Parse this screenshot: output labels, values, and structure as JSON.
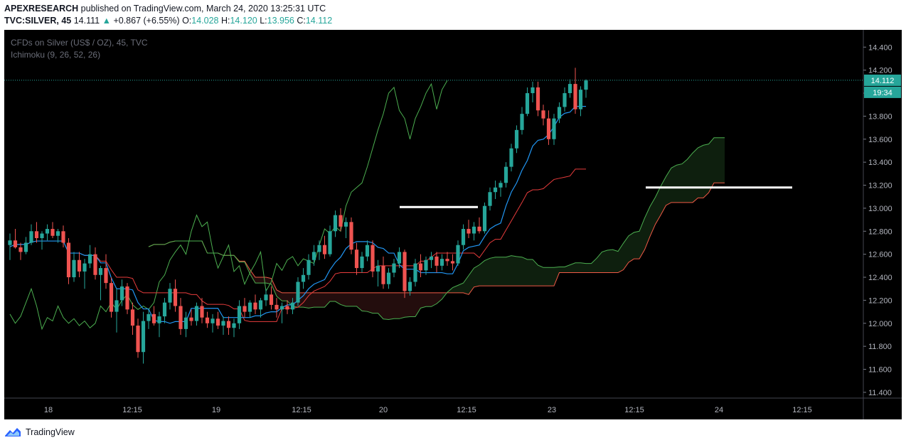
{
  "header": {
    "publisher": "APEXRESEARCH",
    "published_text": "published on TradingView.com, March 24, 2020 13:25:31 UTC",
    "symbol": "TVC:SILVER, 45",
    "price": "14.111",
    "change_arrow": "▲",
    "change": "+0.867 (+6.55%)",
    "o_label": "O:",
    "o_value": "14.028",
    "h_label": "H:",
    "h_value": "14.120",
    "l_label": "L:",
    "l_value": "13.956",
    "c_label": "C:",
    "c_value": "14.112"
  },
  "legend": {
    "instrument": "CFDs on Silver (US$ / OZ), 45, TVC",
    "indicator": "Ichimoku (9, 26, 52, 26)"
  },
  "price_tag": "14.112",
  "countdown": "19:34",
  "footer": {
    "brand": "TradingView",
    "logo_icon": "tradingview-logo-icon"
  },
  "colors": {
    "background": "#000000",
    "up": "#26a69a",
    "down": "#ef5350",
    "conversion_line": "#2196f3",
    "base_line": "#e83c3c",
    "lagging_span": "#4caf50",
    "cloud_bull": "#0e1f0e",
    "cloud_bear": "#230d0d",
    "lead_b": "#f05a46",
    "lead_a": "#4caf50"
  },
  "chart_data": {
    "type": "candlestick",
    "title": "CFDs on Silver (US$ / OZ), 45, TVC",
    "ylim": [
      11.35,
      14.55
    ],
    "yticks": [
      "14.400",
      "14.200",
      "14.000",
      "13.800",
      "13.600",
      "13.400",
      "13.200",
      "13.000",
      "12.800",
      "12.600",
      "12.400",
      "12.200",
      "12.000",
      "11.800",
      "11.600",
      "11.400"
    ],
    "xticks": [
      "18",
      "12:15",
      "19",
      "12:15",
      "20",
      "12:15",
      "23",
      "12:15",
      "24",
      "12:15"
    ],
    "last_price": 14.112,
    "candles": [
      [
        12.68,
        12.78,
        12.55,
        12.72
      ],
      [
        12.72,
        12.82,
        12.65,
        12.66
      ],
      [
        12.66,
        12.7,
        12.55,
        12.62
      ],
      [
        12.62,
        12.75,
        12.6,
        12.7
      ],
      [
        12.7,
        12.86,
        12.68,
        12.8
      ],
      [
        12.8,
        12.88,
        12.7,
        12.74
      ],
      [
        12.74,
        12.8,
        12.64,
        12.78
      ],
      [
        12.78,
        12.86,
        12.72,
        12.82
      ],
      [
        12.82,
        12.88,
        12.74,
        12.76
      ],
      [
        12.76,
        12.82,
        12.7,
        12.8
      ],
      [
        12.8,
        12.85,
        12.66,
        12.7
      ],
      [
        12.7,
        12.74,
        12.34,
        12.4
      ],
      [
        12.4,
        12.62,
        12.36,
        12.55
      ],
      [
        12.55,
        12.62,
        12.4,
        12.45
      ],
      [
        12.45,
        12.56,
        12.3,
        12.52
      ],
      [
        12.52,
        12.68,
        12.48,
        12.6
      ],
      [
        12.6,
        12.66,
        12.38,
        12.42
      ],
      [
        12.42,
        12.5,
        12.2,
        12.48
      ],
      [
        12.48,
        12.6,
        12.3,
        12.35
      ],
      [
        12.35,
        12.4,
        12.05,
        12.1
      ],
      [
        12.1,
        12.3,
        11.92,
        12.2
      ],
      [
        12.2,
        12.38,
        12.15,
        12.32
      ],
      [
        12.32,
        12.35,
        12.08,
        12.12
      ],
      [
        12.12,
        12.18,
        11.9,
        11.98
      ],
      [
        11.98,
        12.04,
        11.7,
        11.75
      ],
      [
        11.75,
        12.1,
        11.65,
        12.02
      ],
      [
        12.02,
        12.12,
        11.95,
        12.08
      ],
      [
        12.08,
        12.15,
        11.98,
        12.0
      ],
      [
        12.0,
        12.1,
        11.88,
        12.06
      ],
      [
        12.06,
        12.22,
        12.0,
        12.18
      ],
      [
        12.18,
        12.35,
        12.12,
        12.3
      ],
      [
        12.3,
        12.38,
        12.1,
        12.15
      ],
      [
        12.15,
        12.22,
        11.9,
        11.95
      ],
      [
        11.95,
        12.1,
        11.88,
        12.05
      ],
      [
        12.05,
        12.12,
        11.98,
        12.02
      ],
      [
        12.02,
        12.18,
        11.98,
        12.15
      ],
      [
        12.15,
        12.22,
        12.0,
        12.05
      ],
      [
        12.05,
        12.1,
        11.96,
        12.0
      ],
      [
        12.0,
        12.08,
        11.92,
        12.04
      ],
      [
        12.04,
        12.1,
        11.95,
        11.98
      ],
      [
        11.98,
        12.06,
        11.9,
        12.02
      ],
      [
        12.02,
        12.06,
        11.9,
        11.96
      ],
      [
        11.96,
        12.04,
        11.88,
        12.0
      ],
      [
        12.0,
        12.2,
        11.95,
        12.15
      ],
      [
        12.15,
        12.22,
        12.05,
        12.1
      ],
      [
        12.1,
        12.2,
        12.05,
        12.18
      ],
      [
        12.18,
        12.25,
        12.08,
        12.12
      ],
      [
        12.12,
        12.22,
        12.05,
        12.2
      ],
      [
        12.2,
        12.3,
        12.15,
        12.25
      ],
      [
        12.25,
        12.32,
        12.12,
        12.16
      ],
      [
        12.16,
        12.22,
        12.05,
        12.12
      ],
      [
        12.12,
        12.18,
        12.0,
        12.15
      ],
      [
        12.15,
        12.2,
        12.08,
        12.12
      ],
      [
        12.12,
        12.22,
        12.08,
        12.18
      ],
      [
        12.18,
        12.4,
        12.15,
        12.36
      ],
      [
        12.36,
        12.48,
        12.3,
        12.42
      ],
      [
        12.42,
        12.6,
        12.38,
        12.55
      ],
      [
        12.55,
        12.68,
        12.5,
        12.62
      ],
      [
        12.62,
        12.72,
        12.55,
        12.68
      ],
      [
        12.68,
        12.76,
        12.56,
        12.6
      ],
      [
        12.6,
        12.85,
        12.58,
        12.8
      ],
      [
        12.8,
        12.98,
        12.75,
        12.94
      ],
      [
        12.94,
        13.0,
        12.8,
        12.84
      ],
      [
        12.84,
        12.92,
        12.74,
        12.88
      ],
      [
        12.88,
        12.92,
        12.6,
        12.64
      ],
      [
        12.64,
        12.7,
        12.42,
        12.48
      ],
      [
        12.48,
        12.62,
        12.44,
        12.58
      ],
      [
        12.58,
        12.72,
        12.54,
        12.68
      ],
      [
        12.68,
        12.72,
        12.4,
        12.45
      ],
      [
        12.45,
        12.55,
        12.32,
        12.5
      ],
      [
        12.5,
        12.58,
        12.3,
        12.34
      ],
      [
        12.34,
        12.48,
        12.3,
        12.44
      ],
      [
        12.44,
        12.56,
        12.4,
        12.52
      ],
      [
        12.52,
        12.66,
        12.48,
        12.62
      ],
      [
        12.62,
        12.64,
        12.22,
        12.28
      ],
      [
        12.28,
        12.4,
        12.24,
        12.36
      ],
      [
        12.36,
        12.56,
        12.32,
        12.52
      ],
      [
        12.52,
        12.6,
        12.4,
        12.46
      ],
      [
        12.46,
        12.58,
        12.42,
        12.55
      ],
      [
        12.55,
        12.62,
        12.48,
        12.58
      ],
      [
        12.58,
        12.62,
        12.44,
        12.5
      ],
      [
        12.5,
        12.6,
        12.46,
        12.56
      ],
      [
        12.56,
        12.62,
        12.5,
        12.54
      ],
      [
        12.54,
        12.6,
        12.46,
        12.52
      ],
      [
        12.52,
        12.72,
        12.5,
        12.68
      ],
      [
        12.68,
        12.86,
        12.64,
        12.82
      ],
      [
        12.82,
        12.9,
        12.74,
        12.78
      ],
      [
        12.78,
        12.88,
        12.72,
        12.84
      ],
      [
        12.84,
        12.92,
        12.78,
        12.8
      ],
      [
        12.8,
        13.05,
        12.78,
        13.02
      ],
      [
        13.02,
        13.18,
        12.98,
        13.14
      ],
      [
        13.14,
        13.24,
        13.08,
        13.18
      ],
      [
        13.18,
        13.24,
        13.1,
        13.22
      ],
      [
        13.22,
        13.4,
        13.18,
        13.36
      ],
      [
        13.36,
        13.56,
        13.32,
        13.52
      ],
      [
        13.52,
        13.72,
        13.48,
        13.68
      ],
      [
        13.68,
        13.88,
        13.64,
        13.82
      ],
      [
        13.82,
        14.05,
        13.8,
        14.0
      ],
      [
        14.0,
        14.1,
        13.92,
        14.05
      ],
      [
        14.05,
        14.1,
        13.8,
        13.85
      ],
      [
        13.85,
        13.9,
        13.72,
        13.78
      ],
      [
        13.78,
        13.85,
        13.55,
        13.6
      ],
      [
        13.6,
        13.82,
        13.55,
        13.78
      ],
      [
        13.78,
        13.92,
        13.74,
        13.88
      ],
      [
        13.88,
        14.05,
        13.84,
        14.0
      ],
      [
        14.0,
        14.12,
        13.96,
        14.08
      ],
      [
        14.08,
        14.22,
        13.82,
        13.86
      ],
      [
        13.86,
        14.06,
        13.8,
        14.03
      ],
      [
        14.03,
        14.12,
        13.96,
        14.11
      ]
    ],
    "annotations": [
      {
        "type": "horizontal-segment",
        "value": 13.01
      },
      {
        "type": "horizontal-segment",
        "value": 13.18
      }
    ]
  }
}
